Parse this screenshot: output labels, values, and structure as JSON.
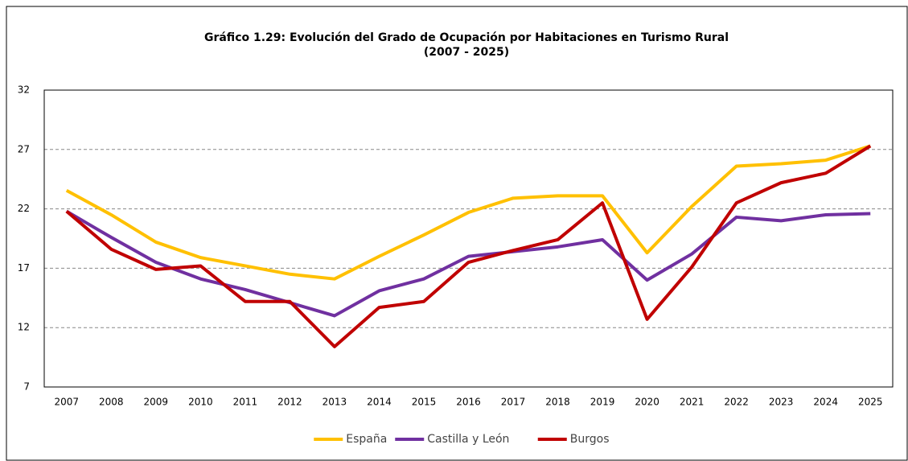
{
  "chart_data": {
    "type": "line",
    "title": "Gráfico 1.29: Evolución del Grado de Ocupación por Habitaciones en Turismo Rural",
    "subtitle": "(2007 - 2025)",
    "categories": [
      "2007",
      "2008",
      "2009",
      "2010",
      "2011",
      "2012",
      "2013",
      "2014",
      "2015",
      "2016",
      "2017",
      "2018",
      "2019",
      "2020",
      "2021",
      "2022",
      "2023",
      "2024",
      "2025"
    ],
    "series": [
      {
        "name": "España",
        "color": "#ffc000",
        "values": [
          23.55,
          21.5,
          19.2,
          17.9,
          17.2,
          16.5,
          16.1,
          18.0,
          19.8,
          21.7,
          22.9,
          23.1,
          23.1,
          18.3,
          22.2,
          25.6,
          25.8,
          26.1,
          27.3
        ]
      },
      {
        "name": "Castilla y León",
        "color": "#7030a0",
        "values": [
          21.8,
          19.6,
          17.5,
          16.1,
          15.2,
          14.1,
          13.0,
          15.1,
          16.1,
          18.0,
          18.4,
          18.8,
          19.4,
          16.0,
          18.2,
          21.3,
          21.0,
          21.5,
          21.6
        ]
      },
      {
        "name": "Burgos",
        "color": "#c00000",
        "values": [
          21.8,
          18.6,
          16.9,
          17.2,
          14.2,
          14.2,
          10.4,
          13.7,
          14.2,
          17.5,
          18.5,
          19.4,
          22.5,
          12.7,
          17.1,
          22.5,
          24.2,
          25.0,
          27.3
        ]
      }
    ],
    "ylim": [
      7,
      32
    ],
    "yticks": [
      7,
      12,
      17,
      22,
      27,
      32
    ],
    "grid": true,
    "legend": "bottom"
  }
}
